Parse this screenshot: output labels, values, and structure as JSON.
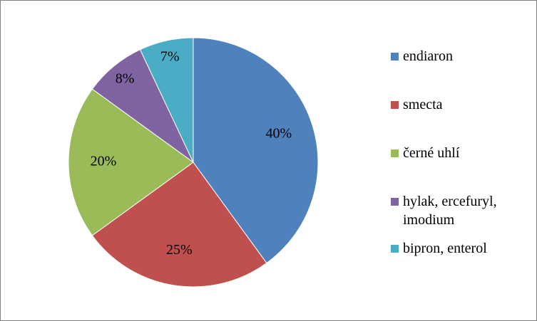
{
  "chart_data": {
    "type": "pie",
    "categories": [
      "endiaron",
      "smecta",
      "černé uhlí",
      "hylak, ercefuryl, imodium",
      "bipron, enterol"
    ],
    "values": [
      40,
      25,
      20,
      8,
      7
    ],
    "value_labels": [
      "40%",
      "25%",
      "20%",
      "8%",
      "7%"
    ],
    "colors": [
      "#4f81bd",
      "#c0504d",
      "#9bbb59",
      "#8064a2",
      "#4bacc6"
    ],
    "legend": "right"
  }
}
